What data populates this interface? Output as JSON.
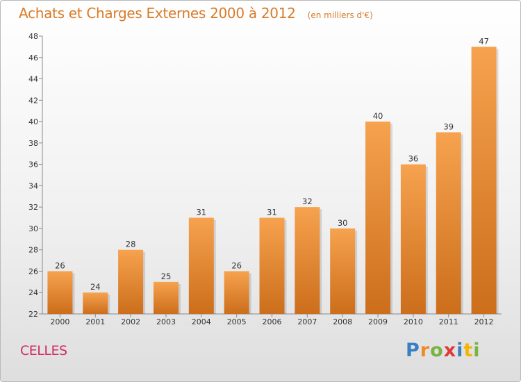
{
  "header": {
    "title": "Achats et Charges Externes 2000 à 2012",
    "subtitle": "(en milliers d'€)"
  },
  "footer": {
    "commune": "CELLES",
    "brand_letters": [
      {
        "ch": "P",
        "color": "#3a7fc1"
      },
      {
        "ch": "r",
        "color": "#f08a24"
      },
      {
        "ch": "o",
        "color": "#7bb342"
      },
      {
        "ch": "x",
        "color": "#e23a3a"
      },
      {
        "ch": "i",
        "color": "#3a7fc1"
      },
      {
        "ch": "t",
        "color": "#f5b400"
      },
      {
        "ch": "i",
        "color": "#7bb342"
      }
    ]
  },
  "colors": {
    "bar_top": "#f6a24e",
    "bar_bottom": "#cc6e1c",
    "title": "#d97a28",
    "commune": "#d12d63"
  },
  "chart_data": {
    "type": "bar",
    "title": "Achats et Charges Externes 2000 à 2012",
    "subtitle": "(en milliers d'€)",
    "categories": [
      "2000",
      "2001",
      "2002",
      "2003",
      "2004",
      "2005",
      "2006",
      "2007",
      "2008",
      "2009",
      "2010",
      "2011",
      "2012"
    ],
    "values": [
      26,
      24,
      28,
      25,
      31,
      26,
      31,
      32,
      30,
      40,
      36,
      39,
      47
    ],
    "ylim": [
      22,
      48
    ],
    "yticks": [
      22,
      24,
      26,
      28,
      30,
      32,
      34,
      36,
      38,
      40,
      42,
      44,
      46,
      48
    ],
    "xlabel": "",
    "ylabel": "",
    "grid": false,
    "legend": "none"
  }
}
